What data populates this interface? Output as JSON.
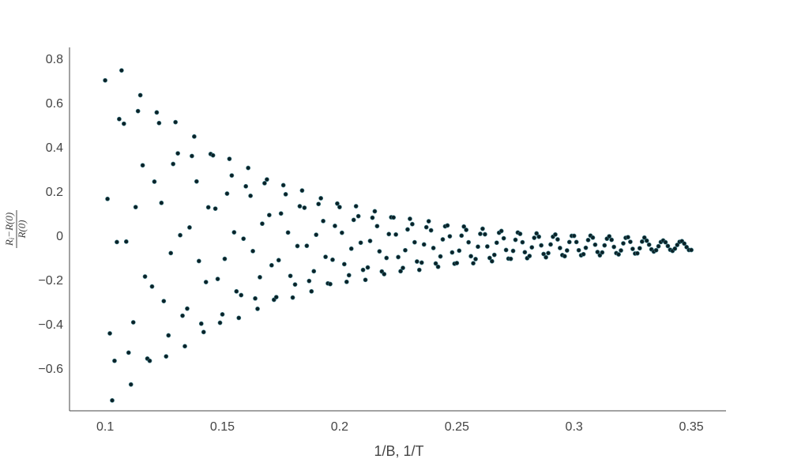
{
  "chart_data": {
    "type": "scatter",
    "x_label": "1/B, 1/T",
    "y_label": {
      "numerator": [
        "R",
        "i",
        "−R(0)"
      ],
      "denominator": "R(0)"
    },
    "color": "#0b2127",
    "marker_line_color": "#3d7f8a",
    "xlim": [
      0.0848,
      0.3648
    ],
    "ylim": [
      -0.786,
      0.857
    ],
    "xticks": [
      0.1,
      0.15,
      0.2,
      0.25,
      0.3,
      0.35
    ],
    "yticks": [
      {
        "value": -0.6,
        "label": "−0.6"
      },
      {
        "value": -0.4,
        "label": "−0.4"
      },
      {
        "value": -0.2,
        "label": "−0.2"
      },
      0,
      0.2,
      0.4,
      0.6,
      0.8
    ],
    "x": [
      0.1,
      0.101,
      0.102,
      0.103,
      0.104,
      0.105,
      0.106,
      0.107,
      0.108,
      0.109,
      0.11,
      0.111,
      0.112,
      0.113,
      0.114,
      0.115,
      0.116,
      0.117,
      0.118,
      0.119,
      0.12,
      0.121,
      0.122,
      0.123,
      0.124,
      0.125,
      0.126,
      0.127,
      0.128,
      0.129,
      0.13,
      0.131,
      0.132,
      0.133,
      0.134,
      0.135,
      0.136,
      0.137,
      0.138,
      0.139,
      0.14,
      0.141,
      0.142,
      0.143,
      0.144,
      0.145,
      0.146,
      0.147,
      0.148,
      0.149,
      0.15,
      0.151,
      0.152,
      0.153,
      0.154,
      0.155,
      0.156,
      0.157,
      0.158,
      0.159,
      0.16,
      0.161,
      0.162,
      0.163,
      0.164,
      0.165,
      0.166,
      0.167,
      0.168,
      0.169,
      0.17,
      0.171,
      0.172,
      0.173,
      0.174,
      0.175,
      0.176,
      0.177,
      0.178,
      0.179,
      0.18,
      0.181,
      0.182,
      0.183,
      0.184,
      0.185,
      0.186,
      0.187,
      0.188,
      0.189,
      0.19,
      0.191,
      0.192,
      0.193,
      0.194,
      0.195,
      0.196,
      0.197,
      0.198,
      0.199,
      0.2,
      0.201,
      0.202,
      0.203,
      0.204,
      0.205,
      0.206,
      0.207,
      0.208,
      0.209,
      0.21,
      0.211,
      0.212,
      0.213,
      0.214,
      0.215,
      0.216,
      0.217,
      0.218,
      0.219,
      0.22,
      0.221,
      0.222,
      0.223,
      0.224,
      0.225,
      0.226,
      0.227,
      0.228,
      0.229,
      0.23,
      0.231,
      0.232,
      0.233,
      0.234,
      0.235,
      0.236,
      0.237,
      0.238,
      0.239,
      0.24,
      0.241,
      0.242,
      0.243,
      0.244,
      0.245,
      0.246,
      0.247,
      0.248,
      0.249,
      0.25,
      0.251,
      0.252,
      0.253,
      0.254,
      0.255,
      0.256,
      0.257,
      0.258,
      0.259,
      0.26,
      0.261,
      0.262,
      0.263,
      0.264,
      0.265,
      0.266,
      0.267,
      0.268,
      0.269,
      0.27,
      0.271,
      0.272,
      0.273,
      0.274,
      0.275,
      0.276,
      0.277,
      0.278,
      0.279,
      0.28,
      0.281,
      0.282,
      0.283,
      0.284,
      0.285,
      0.286,
      0.287,
      0.288,
      0.289,
      0.29,
      0.291,
      0.292,
      0.293,
      0.294,
      0.295,
      0.296,
      0.297,
      0.298,
      0.299,
      0.3,
      0.301,
      0.302,
      0.303,
      0.304,
      0.305,
      0.306,
      0.307,
      0.308,
      0.309,
      0.31,
      0.311,
      0.312,
      0.313,
      0.314,
      0.315,
      0.316,
      0.317,
      0.318,
      0.319,
      0.32,
      0.321,
      0.322,
      0.323,
      0.324,
      0.325,
      0.326,
      0.327,
      0.328,
      0.329,
      0.33,
      0.331,
      0.332,
      0.333,
      0.334,
      0.335,
      0.336,
      0.337,
      0.338,
      0.339,
      0.34,
      0.341,
      0.342,
      0.343,
      0.344,
      0.345,
      0.346,
      0.347,
      0.348,
      0.349,
      0.35
    ],
    "values": [
      0.708,
      0.172,
      -0.436,
      -0.739,
      -0.56,
      -0.023,
      0.533,
      0.753,
      0.512,
      -0.021,
      -0.523,
      -0.667,
      -0.386,
      0.135,
      0.569,
      0.641,
      0.324,
      -0.179,
      -0.55,
      -0.56,
      -0.224,
      0.25,
      0.563,
      0.515,
      0.154,
      -0.29,
      -0.54,
      -0.445,
      -0.073,
      0.33,
      0.519,
      0.378,
      0.008,
      -0.356,
      -0.494,
      -0.324,
      0.043,
      0.366,
      0.454,
      0.251,
      -0.109,
      -0.392,
      -0.43,
      -0.204,
      0.134,
      0.375,
      0.369,
      0.128,
      -0.19,
      -0.388,
      -0.35,
      -0.099,
      0.196,
      0.353,
      0.278,
      0.021,
      -0.246,
      -0.366,
      -0.263,
      -0.008,
      0.229,
      0.312,
      0.186,
      -0.064,
      -0.278,
      -0.325,
      -0.182,
      0.06,
      0.243,
      0.26,
      0.099,
      -0.128,
      -0.284,
      -0.272,
      -0.105,
      0.106,
      0.234,
      0.193,
      0.02,
      -0.176,
      -0.274,
      -0.215,
      -0.041,
      0.139,
      0.21,
      0.132,
      -0.04,
      -0.199,
      -0.246,
      -0.155,
      0.01,
      0.149,
      0.175,
      0.072,
      -0.09,
      -0.21,
      -0.213,
      -0.103,
      0.05,
      0.151,
      0.135,
      0.019,
      -0.123,
      -0.203,
      -0.173,
      -0.053,
      0.077,
      0.139,
      0.094,
      -0.026,
      -0.149,
      -0.194,
      -0.138,
      -0.018,
      0.087,
      0.116,
      0.049,
      -0.065,
      -0.156,
      -0.168,
      -0.095,
      0.013,
      0.089,
      0.088,
      0.011,
      -0.091,
      -0.155,
      -0.14,
      -0.06,
      0.034,
      0.082,
      0.058,
      -0.024,
      -0.111,
      -0.149,
      -0.116,
      -0.034,
      0.044,
      0.071,
      0.03,
      -0.05,
      -0.12,
      -0.135,
      -0.088,
      -0.011,
      0.048,
      0.052,
      0.003,
      -0.07,
      -0.121,
      -0.118,
      -0.062,
      0.006,
      0.047,
      0.032,
      -0.024,
      -0.087,
      -0.119,
      -0.1,
      -0.044,
      0.014,
      0.037,
      0.012,
      -0.043,
      -0.095,
      -0.11,
      -0.081,
      -0.026,
      0.019,
      0.027,
      -0.006,
      -0.059,
      -0.098,
      -0.099,
      -0.063,
      -0.013,
      0.02,
      0.014,
      -0.024,
      -0.069,
      -0.096,
      -0.086,
      -0.047,
      -0.004,
      0.016,
      0.001,
      -0.038,
      -0.077,
      -0.092,
      -0.073,
      -0.034,
      0.001,
      0.011,
      -0.011,
      -0.05,
      -0.082,
      -0.087,
      -0.061,
      -0.023,
      0.005,
      0.005,
      -0.023,
      -0.06,
      -0.083,
      -0.078,
      -0.049,
      -0.014,
      0.006,
      -0.003,
      -0.035,
      -0.068,
      -0.083,
      -0.07,
      -0.038,
      -0.008,
      0.003,
      -0.013,
      -0.045,
      -0.073,
      -0.079,
      -0.061,
      -0.029,
      -0.004,
      -0.001,
      -0.022,
      -0.054,
      -0.075,
      -0.074,
      -0.051,
      -0.021,
      -0.003,
      -0.017,
      -0.035,
      -0.056,
      -0.066,
      -0.06,
      -0.042,
      -0.023,
      -0.016,
      -0.024,
      -0.041,
      -0.058,
      -0.063,
      -0.053,
      -0.036,
      -0.022,
      -0.019,
      -0.03,
      -0.046,
      -0.059,
      -0.059
    ]
  }
}
